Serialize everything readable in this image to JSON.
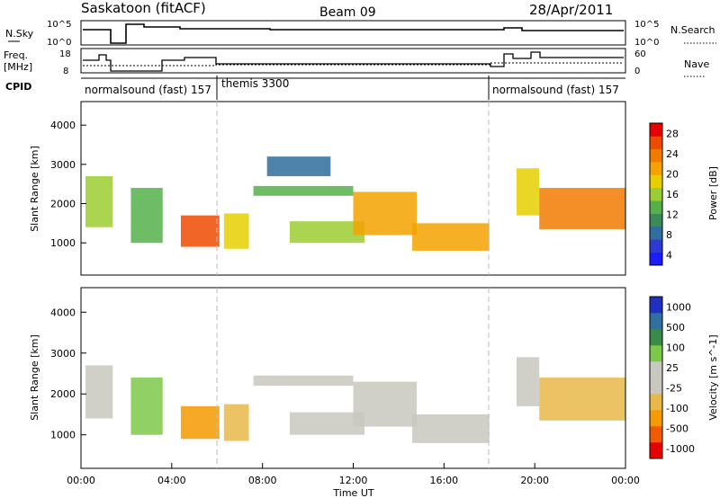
{
  "header": {
    "title": "Saskatoon (fitACF)",
    "beam": "Beam 09",
    "date": "28/Apr/2011"
  },
  "status_panels": {
    "nsky_label": "N.Sky",
    "nsky_ticks": [
      "10^5",
      "10^0"
    ],
    "nsearch_label": "N.Search",
    "nsearch_ticks": [
      "10^5",
      "10^0"
    ],
    "freq_label_line1": "Freq.",
    "freq_label_line2": "[MHz]",
    "freq_ticks": [
      "18",
      "8"
    ],
    "nave_label": "Nave",
    "nave_ticks": [
      "60",
      "0"
    ],
    "cpid_label": "CPID",
    "cpid_segments": [
      {
        "label": "normalsound (fast) 157",
        "start_hour": 0,
        "end_hour": 6
      },
      {
        "label": "themis 3300",
        "start_hour": 6,
        "end_hour": 18
      },
      {
        "label": "normalsound (fast) 157",
        "start_hour": 18,
        "end_hour": 24
      }
    ]
  },
  "chart_data": [
    {
      "type": "heatmap",
      "title": "",
      "xlabel": "",
      "ylabel": "Slant Range [km]",
      "xlim": [
        0,
        24
      ],
      "ylim": [
        180,
        4600
      ],
      "yticks": [
        "1000",
        "2000",
        "3000",
        "4000"
      ],
      "colorbar": {
        "label": "Power [dB]",
        "ticks": [
          "28",
          "24",
          "20",
          "16",
          "12",
          "8",
          "4"
        ],
        "range": [
          0,
          30
        ]
      },
      "echo_regions": [
        {
          "t0": 0.2,
          "t1": 1.4,
          "r0": 1400,
          "r1": 2700,
          "level": 14
        },
        {
          "t0": 2.2,
          "t1": 3.6,
          "r0": 1000,
          "r1": 2400,
          "level": 12
        },
        {
          "t0": 4.4,
          "t1": 6.1,
          "r0": 900,
          "r1": 1700,
          "level": 27
        },
        {
          "t0": 6.3,
          "t1": 7.4,
          "r0": 850,
          "r1": 1750,
          "level": 18
        },
        {
          "t0": 7.6,
          "t1": 12.0,
          "r0": 2200,
          "r1": 2450,
          "level": 13
        },
        {
          "t0": 8.2,
          "t1": 11.0,
          "r0": 2700,
          "r1": 3200,
          "level": 6
        },
        {
          "t0": 9.2,
          "t1": 12.5,
          "r0": 1000,
          "r1": 1550,
          "level": 15
        },
        {
          "t0": 12.0,
          "t1": 14.8,
          "r0": 1200,
          "r1": 2300,
          "level": 20
        },
        {
          "t0": 14.6,
          "t1": 18.0,
          "r0": 800,
          "r1": 1500,
          "level": 22
        },
        {
          "t0": 19.2,
          "t1": 20.2,
          "r0": 1700,
          "r1": 2900,
          "level": 18
        },
        {
          "t0": 20.2,
          "t1": 24.0,
          "r0": 1350,
          "r1": 2400,
          "level": 24
        }
      ]
    },
    {
      "type": "heatmap",
      "title": "",
      "xlabel": "Time UT",
      "ylabel": "Slant Range [km]",
      "xlim": [
        0,
        24
      ],
      "ylim": [
        180,
        4600
      ],
      "xticks": [
        "00:00",
        "04:00",
        "08:00",
        "12:00",
        "16:00",
        "20:00",
        "00:00"
      ],
      "yticks": [
        "1000",
        "2000",
        "3000",
        "4000"
      ],
      "colorbar": {
        "label": "Velocity [m s^-1]",
        "ticks": [
          "1000",
          "500",
          "100",
          "25",
          "-25",
          "-100",
          "-500",
          "-1000"
        ],
        "range": [
          -1000,
          1000
        ]
      },
      "echo_regions": [
        {
          "t0": 0.2,
          "t1": 1.4,
          "r0": 1400,
          "r1": 2700,
          "level": 0
        },
        {
          "t0": 2.2,
          "t1": 3.6,
          "r0": 1000,
          "r1": 2400,
          "level": 80
        },
        {
          "t0": 4.4,
          "t1": 6.1,
          "r0": 900,
          "r1": 1700,
          "level": -150
        },
        {
          "t0": 6.3,
          "t1": 7.4,
          "r0": 850,
          "r1": 1750,
          "level": -60
        },
        {
          "t0": 7.6,
          "t1": 12.0,
          "r0": 2200,
          "r1": 2450,
          "level": 0
        },
        {
          "t0": 9.2,
          "t1": 12.5,
          "r0": 1000,
          "r1": 1550,
          "level": 0
        },
        {
          "t0": 12.0,
          "t1": 14.8,
          "r0": 1200,
          "r1": 2300,
          "level": 0
        },
        {
          "t0": 14.6,
          "t1": 18.0,
          "r0": 800,
          "r1": 1500,
          "level": 0
        },
        {
          "t0": 19.2,
          "t1": 20.2,
          "r0": 1700,
          "r1": 2900,
          "level": 0
        },
        {
          "t0": 20.2,
          "t1": 24.0,
          "r0": 1350,
          "r1": 2400,
          "level": -80
        }
      ]
    }
  ]
}
